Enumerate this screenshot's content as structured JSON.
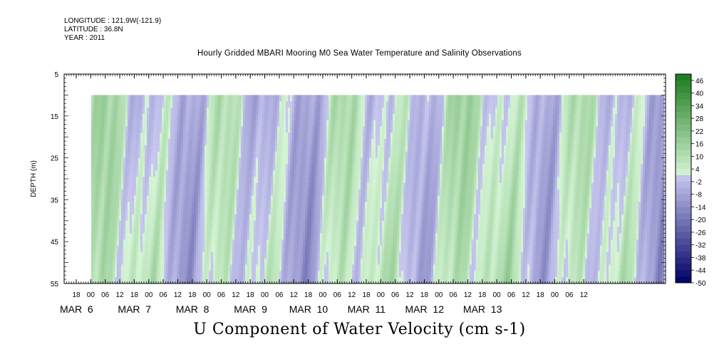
{
  "header": {
    "longitude": "LONGITUDE : 121.9W(-121.9)",
    "latitude": "LATITUDE : 36.8N",
    "year": "YEAR : 2011"
  },
  "chart_data": {
    "type": "heatmap",
    "title": "Hourly Gridded MBARI Mooring M0 Sea Water Temperature and Salinity Observations",
    "colorbar_label": "U Component of Water Velocity (cm s-1)",
    "ylabel": "DEPTH (m)",
    "ylim": [
      5,
      55
    ],
    "y_inverted": true,
    "y_ticks": [
      5,
      15,
      25,
      35,
      45,
      55
    ],
    "hour_ticks": [
      "18",
      "00",
      "06",
      "12",
      "18",
      "00",
      "06",
      "12",
      "18",
      "00",
      "06",
      "12",
      "18",
      "00",
      "06",
      "12",
      "18",
      "00",
      "06",
      "12",
      "18",
      "00",
      "06",
      "12",
      "18",
      "00",
      "06",
      "12",
      "18",
      "00",
      "06",
      "12",
      "18",
      "00",
      "06",
      "12"
    ],
    "day_labels": [
      "MAR 6",
      "MAR 7",
      "MAR 8",
      "MAR 9",
      "MAR 10",
      "MAR 11",
      "MAR 12",
      "MAR 13"
    ],
    "data_depth_range": [
      10,
      55
    ],
    "data_time_range": "MAR 5 ~21:00 to MAR 13 ~18:00",
    "colorbar_ticks": [
      46,
      40,
      34,
      28,
      22,
      16,
      10,
      4,
      -2,
      -8,
      -14,
      -20,
      -26,
      -32,
      -38,
      -44,
      -50
    ],
    "colorbar_range": [
      -50,
      49
    ],
    "colors": {
      "positive_scale": [
        "#d6f5d6",
        "#1a7a1a"
      ],
      "negative_scale": [
        "#c8c8f0",
        "#000066"
      ]
    },
    "pattern": "alternating vertical bands of positive (green, ~4 to 16 cm/s) and negative (blue, ~-2 to -20 cm/s) velocity with tidal periodicity through the full water column"
  }
}
